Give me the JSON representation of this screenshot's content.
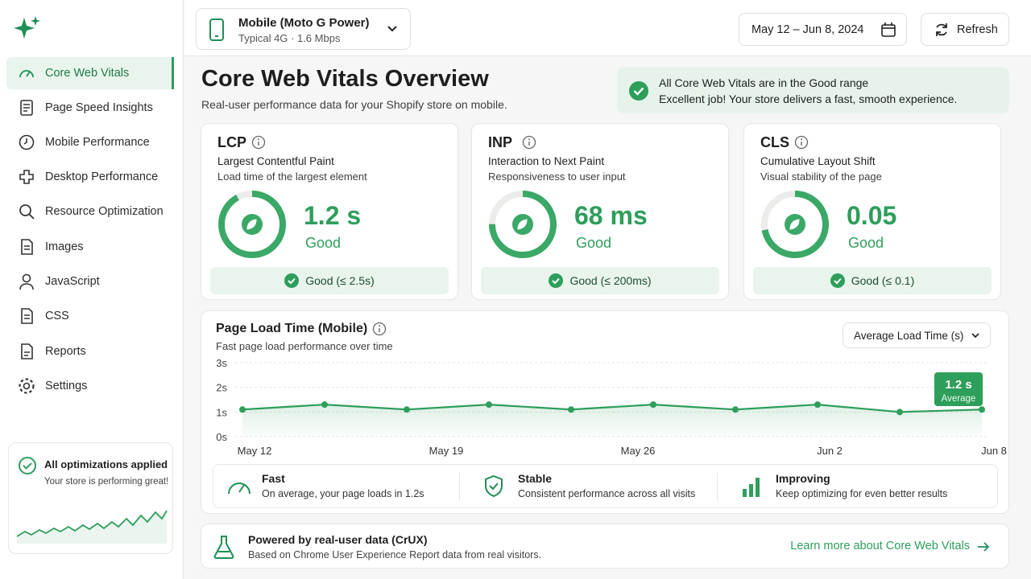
{
  "sidebar": {
    "nav": [
      "Core Web Vitals",
      "Page Speed Insights",
      "Mobile Performance",
      "Desktop Performance",
      "Resource Optimization",
      "Images",
      "JavaScript",
      "CSS",
      "Reports",
      "Settings"
    ],
    "status": {
      "title": "All optimizations applied",
      "text": "Your store is performing great!"
    }
  },
  "header": {
    "device": {
      "name": "Mobile (Moto G Power)",
      "detail": "Typical 4G · 1.6 Mbps"
    },
    "date_range": "May 12 – Jun 8, 2024",
    "refresh": "Refresh"
  },
  "page": {
    "title": "Core Web Vitals Overview",
    "subtitle": "Real-user performance data for your Shopify store on mobile.",
    "banner": {
      "title": "All Core Web Vitals are in the Good range",
      "text": "Excellent job! Your store delivers a fast, smooth experience."
    }
  },
  "metrics": [
    {
      "code": "LCP",
      "name": "Largest Contentful Paint",
      "desc": "Load time of the largest element",
      "value": "1.2 s",
      "rating": "Good",
      "threshold": "Good (≤ 2.5s)"
    },
    {
      "code": "INP",
      "name": "Interaction to Next Paint",
      "desc": "Responsiveness to user input",
      "value": "68 ms",
      "rating": "Good",
      "threshold": "Good (≤ 200ms)"
    },
    {
      "code": "CLS",
      "name": "Cumulative Layout Shift",
      "desc": "Visual stability of the page",
      "value": "0.05",
      "rating": "Good",
      "threshold": "Good (≤ 0.1)"
    }
  ],
  "chart_data": {
    "type": "line",
    "title": "Page Load Time (Mobile)",
    "subtitle": "Fast page load performance over time",
    "selector": "Average Load Time (s)",
    "x": [
      0,
      3,
      6,
      9,
      12,
      15,
      18,
      21,
      24,
      27
    ],
    "series": [
      {
        "color": "#2e9e5b",
        "values": [
          1.1,
          1.3,
          1.1,
          1.3,
          1.1,
          1.3,
          1.1,
          1.3,
          1.0,
          1.1
        ]
      }
    ],
    "xlim": [
      0,
      27
    ],
    "xticks": [
      {
        "value": 0,
        "label": "May 12"
      },
      {
        "value": 7,
        "label": "May 19"
      },
      {
        "value": 14,
        "label": "May 26"
      },
      {
        "value": 21,
        "label": "Jun 2"
      },
      {
        "value": 27,
        "label": "Jun 8"
      }
    ],
    "ylim": [
      0,
      3
    ],
    "yticks": [
      {
        "value": 0,
        "label": "0s"
      },
      {
        "value": 1,
        "label": "1s"
      },
      {
        "value": 2,
        "label": "2s"
      },
      {
        "value": 3,
        "label": "3s"
      }
    ],
    "grid": true,
    "annotation": {
      "label": "1.2 s",
      "text": "Average"
    }
  },
  "summary": [
    {
      "title": "Fast",
      "text": "On average, your page loads in 1.2s"
    },
    {
      "title": "Stable",
      "text": "Consistent performance across all visits"
    },
    {
      "title": "Improving",
      "text": "Keep optimizing for even better results"
    }
  ],
  "footer": {
    "title": "Powered by real-user data (CrUX)",
    "text": "Based on Chrome User Experience Report data from real visitors.",
    "link": "Learn more about Core Web Vitals"
  }
}
